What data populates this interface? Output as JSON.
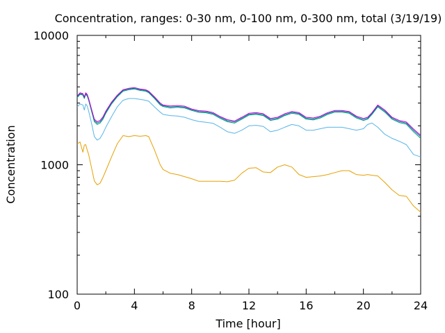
{
  "chart_data": {
    "type": "line",
    "title": "Concentration, ranges: 0-30 nm, 0-100 nm, 0-300 nm, total (3/19/19)",
    "xlabel": "Time [hour]",
    "ylabel": "Concentration",
    "xlim": [
      0,
      24
    ],
    "ylim": [
      100,
      10000
    ],
    "y_scale": "log",
    "grid": false,
    "x_ticks": [
      "0",
      "4",
      "8",
      "12",
      "16",
      "20",
      "24"
    ],
    "y_ticks": [
      "100",
      "1000",
      "10000"
    ],
    "x_tick_values": [
      0,
      4,
      8,
      12,
      16,
      20,
      24
    ],
    "y_tick_values": [
      100,
      1000,
      10000
    ],
    "x": [
      0,
      0.2,
      0.4,
      0.5,
      0.6,
      0.7,
      0.8,
      1.0,
      1.2,
      1.4,
      1.6,
      1.8,
      2.0,
      2.4,
      2.8,
      3.2,
      3.6,
      4.0,
      4.4,
      4.8,
      5.0,
      5.4,
      5.8,
      6.0,
      6.5,
      7.0,
      7.5,
      8.0,
      8.5,
      9.0,
      9.5,
      10.0,
      10.5,
      11.0,
      11.5,
      12.0,
      12.5,
      13.0,
      13.5,
      14.0,
      14.5,
      15.0,
      15.5,
      16.0,
      16.5,
      17.0,
      17.5,
      18.0,
      18.5,
      19.0,
      19.5,
      20.0,
      20.3,
      20.6,
      21.0,
      21.5,
      22.0,
      22.5,
      23.0,
      23.5,
      24.0
    ],
    "series": [
      {
        "color": "#e6a000",
        "values": [
          1450,
          1500,
          1250,
          1420,
          1430,
          1300,
          1200,
          950,
          750,
          700,
          720,
          800,
          900,
          1150,
          1450,
          1680,
          1650,
          1680,
          1660,
          1680,
          1650,
          1300,
          1000,
          920,
          860,
          840,
          810,
          780,
          745,
          745,
          745,
          745,
          740,
          760,
          860,
          940,
          950,
          880,
          870,
          960,
          1000,
          960,
          840,
          800,
          810,
          820,
          840,
          870,
          900,
          900,
          840,
          830,
          840,
          830,
          820,
          730,
          640,
          580,
          570,
          480,
          430
        ]
      },
      {
        "color": "#56b4e9",
        "values": [
          2800,
          2950,
          2900,
          2650,
          2950,
          2850,
          2600,
          2100,
          1650,
          1550,
          1600,
          1750,
          1950,
          2350,
          2800,
          3150,
          3250,
          3250,
          3200,
          3150,
          3100,
          2800,
          2550,
          2450,
          2400,
          2380,
          2330,
          2230,
          2160,
          2130,
          2090,
          1950,
          1800,
          1750,
          1850,
          2000,
          2020,
          1980,
          1800,
          1850,
          1950,
          2050,
          2000,
          1850,
          1850,
          1900,
          1950,
          1950,
          1950,
          1900,
          1850,
          1900,
          2050,
          2100,
          1950,
          1720,
          1600,
          1520,
          1430,
          1200,
          1150
        ]
      },
      {
        "color": "#009e73",
        "values": [
          3300,
          3500,
          3450,
          3250,
          3500,
          3400,
          3150,
          2600,
          2150,
          2050,
          2100,
          2250,
          2500,
          2950,
          3350,
          3700,
          3800,
          3850,
          3750,
          3700,
          3600,
          3250,
          2900,
          2820,
          2750,
          2780,
          2750,
          2630,
          2540,
          2520,
          2450,
          2280,
          2150,
          2100,
          2250,
          2420,
          2450,
          2400,
          2200,
          2250,
          2400,
          2500,
          2450,
          2250,
          2220,
          2300,
          2450,
          2550,
          2550,
          2500,
          2300,
          2200,
          2250,
          2450,
          2800,
          2550,
          2250,
          2120,
          2060,
          1800,
          1600
        ]
      },
      {
        "color": "#0072b2",
        "values": [
          3350,
          3550,
          3500,
          3300,
          3550,
          3450,
          3200,
          2650,
          2200,
          2100,
          2150,
          2300,
          2550,
          3000,
          3400,
          3750,
          3850,
          3900,
          3800,
          3750,
          3650,
          3300,
          2950,
          2860,
          2800,
          2820,
          2790,
          2660,
          2580,
          2560,
          2490,
          2320,
          2190,
          2140,
          2290,
          2460,
          2490,
          2440,
          2240,
          2290,
          2440,
          2540,
          2490,
          2290,
          2260,
          2340,
          2490,
          2590,
          2590,
          2540,
          2340,
          2240,
          2290,
          2490,
          2850,
          2600,
          2290,
          2160,
          2100,
          1850,
          1650
        ]
      },
      {
        "color": "#cc00cc",
        "values": [
          3400,
          3600,
          3550,
          3350,
          3600,
          3500,
          3250,
          2700,
          2250,
          2150,
          2200,
          2350,
          2600,
          3050,
          3450,
          3800,
          3900,
          3950,
          3850,
          3800,
          3700,
          3350,
          3000,
          2900,
          2850,
          2870,
          2840,
          2700,
          2620,
          2600,
          2530,
          2360,
          2230,
          2180,
          2330,
          2500,
          2530,
          2480,
          2280,
          2330,
          2480,
          2580,
          2530,
          2330,
          2300,
          2380,
          2530,
          2630,
          2630,
          2580,
          2380,
          2280,
          2330,
          2530,
          2900,
          2650,
          2330,
          2200,
          2140,
          1890,
          1690
        ]
      }
    ]
  }
}
